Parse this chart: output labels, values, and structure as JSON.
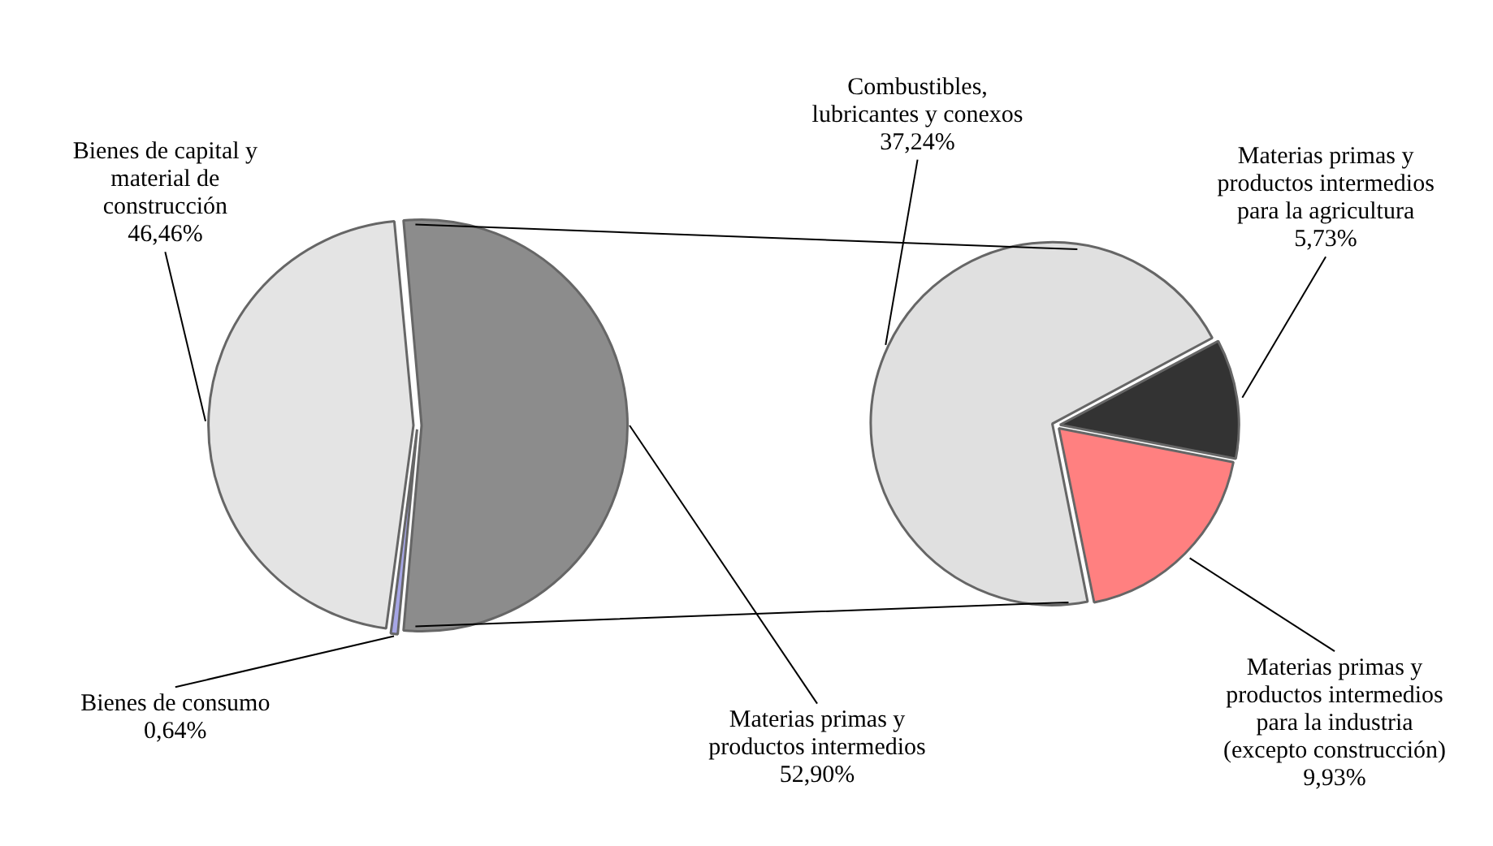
{
  "chart_data": [
    {
      "type": "pie",
      "categories": [
        "Materias primas y productos intermedios",
        "Bienes de consumo",
        "Bienes de capital y material de construcción"
      ],
      "values": [
        52.9,
        0.64,
        46.46
      ],
      "colors": [
        "#8c8c8c",
        "#a6a6e6",
        "#e4e4e4"
      ],
      "value_labels": [
        "52,90%",
        "0,64%",
        "46,46%"
      ],
      "legend": false
    },
    {
      "type": "pie",
      "categories": [
        "Materias primas y productos intermedios para la agricultura",
        "Materias primas y productos intermedios para la industria (excepto construcción)",
        "Combustibles, lubricantes y conexos"
      ],
      "values": [
        5.73,
        9.93,
        37.24
      ],
      "colors": [
        "#333333",
        "#ff8080",
        "#e0e0e0"
      ],
      "value_labels": [
        "5,73%",
        "9,93%",
        "37,24%"
      ],
      "legend": false
    }
  ]
}
